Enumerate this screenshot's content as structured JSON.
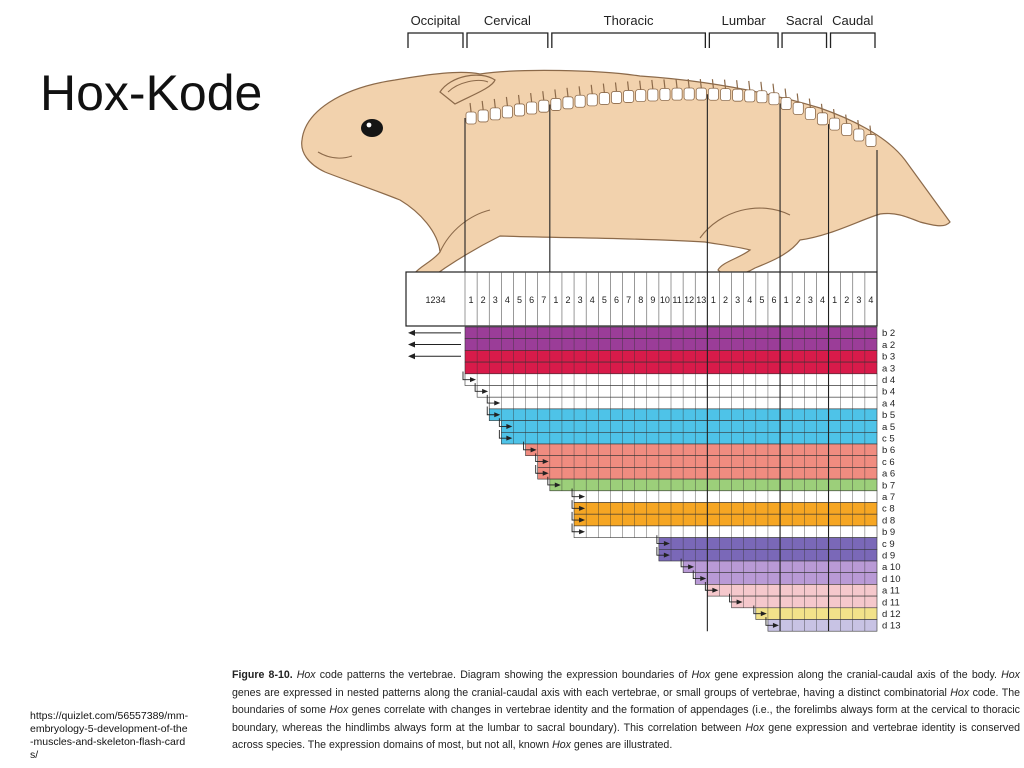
{
  "slide": {
    "title": "Hox-Kode",
    "source_url": "https://quizlet.com/56557389/mm-embryology-5-development-of-the-muscles-and-skeleton-flash-cards/"
  },
  "caption": {
    "figure_label": "Figure 8-10.",
    "segments": [
      {
        "t": "Hox",
        "i": true
      },
      {
        "t": " code patterns the vertebrae. Diagram showing the expression boundaries of "
      },
      {
        "t": "Hox",
        "i": true
      },
      {
        "t": " gene expression along the cranial-caudal axis of the body. "
      },
      {
        "t": "Hox",
        "i": true
      },
      {
        "t": " genes are expressed in nested patterns along the cranial-caudal axis with each vertebrae, or small groups of vertebrae, having a distinct combinatorial "
      },
      {
        "t": "Hox",
        "i": true
      },
      {
        "t": " code. The boundaries of some "
      },
      {
        "t": "Hox",
        "i": true
      },
      {
        "t": " genes correlate with changes in vertebrae identity and the formation of appendages (i.e., the forelimbs always form at the cervical to thoracic boundary, whereas the hindlimbs always form at the lumbar to sacral boundary). This correlation between "
      },
      {
        "t": "Hox",
        "i": true
      },
      {
        "t": " gene expression and vertebrae identity is conserved across species. The expression domains of most, but not all, known "
      },
      {
        "t": "Hox",
        "i": true
      },
      {
        "t": " genes are illustrated."
      }
    ]
  },
  "regions": [
    {
      "name": "Occipital",
      "count": 4,
      "numbers": [
        "1",
        "2",
        "3",
        "4"
      ]
    },
    {
      "name": "Cervical",
      "count": 7,
      "numbers": [
        "1",
        "2",
        "3",
        "4",
        "5",
        "6",
        "7"
      ]
    },
    {
      "name": "Thoracic",
      "count": 13,
      "numbers": [
        "1",
        "2",
        "3",
        "4",
        "5",
        "6",
        "7",
        "8",
        "9",
        "10",
        "11",
        "12",
        "13"
      ]
    },
    {
      "name": "Lumbar",
      "count": 6,
      "numbers": [
        "1",
        "2",
        "3",
        "4",
        "5",
        "6"
      ]
    },
    {
      "name": "Sacral",
      "count": 4,
      "numbers": [
        "1",
        "2",
        "3",
        "4"
      ]
    },
    {
      "name": "Caudal",
      "count": 4,
      "numbers": [
        "1",
        "2",
        "3",
        "4"
      ]
    }
  ],
  "genes": [
    {
      "label": "b 2",
      "start": 0,
      "color": "#9b3d98",
      "arrow": true
    },
    {
      "label": "a 2",
      "start": 0,
      "color": "#9b3d98",
      "arrow": true
    },
    {
      "label": "b 3",
      "start": 0,
      "color": "#d81b4a",
      "arrow": true
    },
    {
      "label": "a 3",
      "start": 0,
      "color": "#d81b4a"
    },
    {
      "label": "d 4",
      "start": 0,
      "color": "#ffffff"
    },
    {
      "label": "b 4",
      "start": 1,
      "color": "#ffffff"
    },
    {
      "label": "a 4",
      "start": 2,
      "color": "#ffffff"
    },
    {
      "label": "b 5",
      "start": 2,
      "color": "#4ec3e8"
    },
    {
      "label": "a 5",
      "start": 3,
      "color": "#4ec3e8"
    },
    {
      "label": "c 5",
      "start": 3,
      "color": "#4ec3e8"
    },
    {
      "label": "b 6",
      "start": 5,
      "color": "#f08c80"
    },
    {
      "label": "c 6",
      "start": 6,
      "color": "#f08c80"
    },
    {
      "label": "a 6",
      "start": 6,
      "color": "#f08c80"
    },
    {
      "label": "b 7",
      "start": 7,
      "color": "#9ccf7a"
    },
    {
      "label": "a 7",
      "start": 9,
      "color": "#ffffff"
    },
    {
      "label": "c 8",
      "start": 9,
      "color": "#f6a623"
    },
    {
      "label": "d 8",
      "start": 9,
      "color": "#f6a623"
    },
    {
      "label": "b 9",
      "start": 9,
      "color": "#ffffff"
    },
    {
      "label": "c 9",
      "start": 16,
      "color": "#7a68b8"
    },
    {
      "label": "d 9",
      "start": 16,
      "color": "#7a68b8"
    },
    {
      "label": "a 10",
      "start": 18,
      "color": "#b99ad6"
    },
    {
      "label": "d 10",
      "start": 19,
      "color": "#b99ad6"
    },
    {
      "label": "a 11",
      "start": 20,
      "color": "#f5c8cc"
    },
    {
      "label": "d 11",
      "start": 22,
      "color": "#f5c8cc"
    },
    {
      "label": "d 12",
      "start": 24,
      "color": "#f2e28a"
    },
    {
      "label": "d 13",
      "start": 25,
      "color": "#c8c3e4"
    }
  ],
  "colors": {
    "body": "#f2d2ad",
    "body_outline": "#8c6a4a",
    "spine": "#ffffff",
    "grid_line": "#333333"
  }
}
